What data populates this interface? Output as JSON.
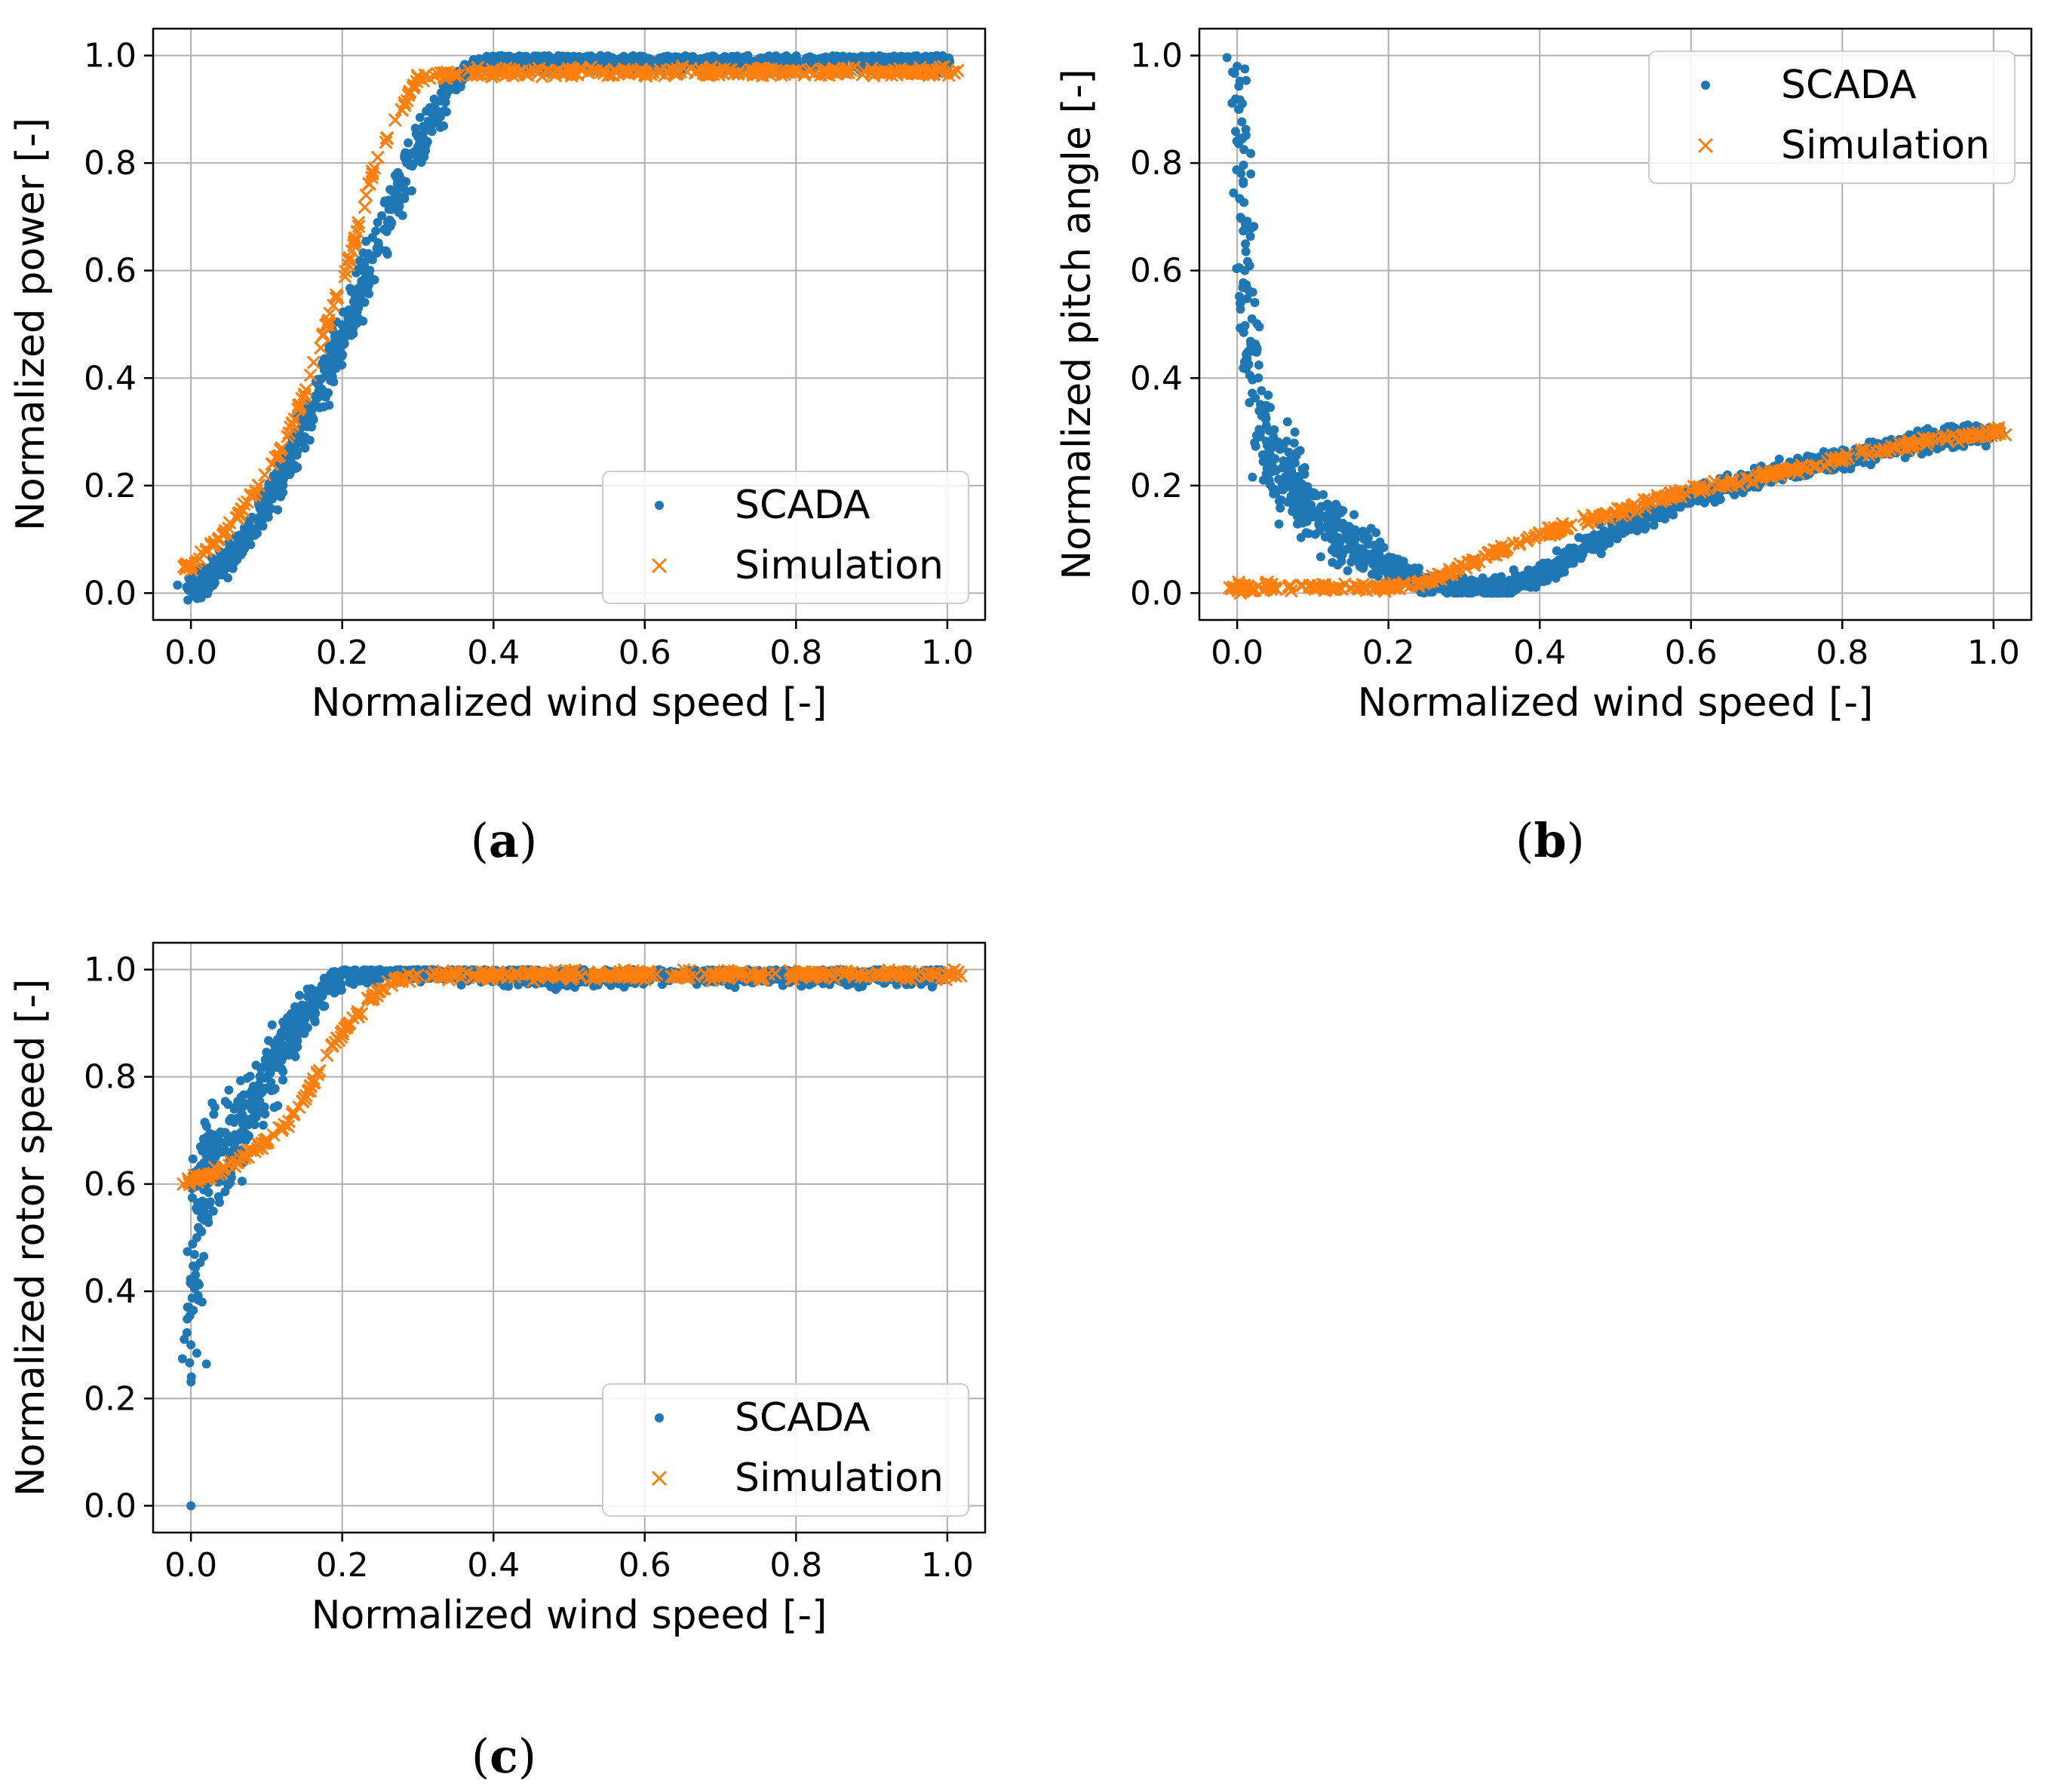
{
  "figure": {
    "panels": [
      {
        "id": "a",
        "caption_open": "(",
        "caption_letter": "a",
        "caption_close": ")"
      },
      {
        "id": "b",
        "caption_open": "(",
        "caption_letter": "b",
        "caption_close": ")"
      },
      {
        "id": "c",
        "caption_open": "(",
        "caption_letter": "c",
        "caption_close": ")"
      }
    ]
  },
  "colors": {
    "scada": "#1f77b4",
    "simulation": "#ff7f0e",
    "grid": "#b0b0b0",
    "axis": "#000000"
  },
  "chart_data": [
    {
      "id": "a",
      "type": "scatter",
      "title": "",
      "xlabel": "Normalized wind speed [-]",
      "ylabel": "Normalized power [-]",
      "xlim": [
        -0.05,
        1.05
      ],
      "ylim": [
        -0.05,
        1.05
      ],
      "xticks": [
        0.0,
        0.2,
        0.4,
        0.6,
        0.8,
        1.0
      ],
      "yticks": [
        0.0,
        0.2,
        0.4,
        0.6,
        0.8,
        1.0
      ],
      "xtick_labels": [
        "0.0",
        "0.2",
        "0.4",
        "0.6",
        "0.8",
        "1.0"
      ],
      "ytick_labels": [
        "0.0",
        "0.2",
        "0.4",
        "0.6",
        "0.8",
        "1.0"
      ],
      "grid": true,
      "legend": {
        "location": "lower-right",
        "entries": [
          "SCADA",
          "Simulation"
        ]
      },
      "series": [
        {
          "name": "SCADA",
          "marker": "dot",
          "x": [
            0.0,
            0.02,
            0.04,
            0.06,
            0.08,
            0.1,
            0.12,
            0.14,
            0.16,
            0.18,
            0.2,
            0.22,
            0.24,
            0.26,
            0.28,
            0.3,
            0.32,
            0.34,
            0.36,
            0.38,
            0.4,
            0.5,
            0.6,
            0.7,
            0.8,
            0.9,
            1.0
          ],
          "y": [
            0.01,
            0.03,
            0.05,
            0.08,
            0.12,
            0.17,
            0.22,
            0.28,
            0.34,
            0.41,
            0.48,
            0.55,
            0.62,
            0.69,
            0.76,
            0.83,
            0.89,
            0.94,
            0.97,
            0.98,
            0.99,
            0.99,
            0.99,
            0.99,
            0.99,
            0.99,
            0.99
          ]
        },
        {
          "name": "Simulation",
          "marker": "x",
          "x": [
            0.0,
            0.03,
            0.06,
            0.09,
            0.12,
            0.15,
            0.18,
            0.21,
            0.24,
            0.27,
            0.3,
            0.4,
            0.5,
            0.6,
            0.7,
            0.8,
            0.9,
            1.0
          ],
          "y": [
            0.05,
            0.09,
            0.14,
            0.2,
            0.27,
            0.37,
            0.5,
            0.62,
            0.78,
            0.88,
            0.96,
            0.97,
            0.97,
            0.97,
            0.97,
            0.97,
            0.97,
            0.97
          ]
        }
      ]
    },
    {
      "id": "b",
      "type": "scatter",
      "title": "",
      "xlabel": "Normalized wind speed [-]",
      "ylabel": "Normalized pitch angle [-]",
      "xlim": [
        -0.05,
        1.05
      ],
      "ylim": [
        -0.05,
        1.05
      ],
      "xticks": [
        0.0,
        0.2,
        0.4,
        0.6,
        0.8,
        1.0
      ],
      "yticks": [
        0.0,
        0.2,
        0.4,
        0.6,
        0.8,
        1.0
      ],
      "xtick_labels": [
        "0.0",
        "0.2",
        "0.4",
        "0.6",
        "0.8",
        "1.0"
      ],
      "ytick_labels": [
        "0.0",
        "0.2",
        "0.4",
        "0.6",
        "0.8",
        "1.0"
      ],
      "grid": true,
      "legend": {
        "location": "upper-right",
        "entries": [
          "SCADA",
          "Simulation"
        ]
      },
      "series": [
        {
          "name": "SCADA",
          "marker": "dot",
          "x": [
            0.0,
            0.01,
            0.02,
            0.03,
            0.05,
            0.08,
            0.1,
            0.12,
            0.15,
            0.18,
            0.2,
            0.25,
            0.3,
            0.35,
            0.4,
            0.5,
            0.6,
            0.7,
            0.8,
            0.9,
            1.0
          ],
          "y": [
            0.98,
            0.6,
            0.45,
            0.3,
            0.25,
            0.2,
            0.15,
            0.12,
            0.1,
            0.07,
            0.05,
            0.02,
            0.01,
            0.01,
            0.03,
            0.12,
            0.18,
            0.22,
            0.25,
            0.28,
            0.3
          ]
        },
        {
          "name": "Simulation",
          "marker": "x",
          "x": [
            -0.01,
            0.05,
            0.1,
            0.15,
            0.2,
            0.25,
            0.3,
            0.35,
            0.4,
            0.5,
            0.6,
            0.7,
            0.8,
            0.9,
            1.0
          ],
          "y": [
            0.01,
            0.01,
            0.01,
            0.01,
            0.01,
            0.02,
            0.05,
            0.08,
            0.11,
            0.15,
            0.19,
            0.22,
            0.25,
            0.28,
            0.3
          ]
        }
      ]
    },
    {
      "id": "c",
      "type": "scatter",
      "title": "",
      "xlabel": "Normalized wind speed [-]",
      "ylabel": "Normalized rotor speed [-]",
      "xlim": [
        -0.05,
        1.05
      ],
      "ylim": [
        -0.05,
        1.05
      ],
      "xticks": [
        0.0,
        0.2,
        0.4,
        0.6,
        0.8,
        1.0
      ],
      "yticks": [
        0.0,
        0.2,
        0.4,
        0.6,
        0.8,
        1.0
      ],
      "xtick_labels": [
        "0.0",
        "0.2",
        "0.4",
        "0.6",
        "0.8",
        "1.0"
      ],
      "ytick_labels": [
        "0.0",
        "0.2",
        "0.4",
        "0.6",
        "0.8",
        "1.0"
      ],
      "grid": true,
      "legend": {
        "location": "lower-right",
        "entries": [
          "SCADA",
          "Simulation"
        ]
      },
      "series": [
        {
          "name": "SCADA",
          "marker": "dot",
          "x": [
            0.0,
            0.0,
            0.01,
            0.02,
            0.03,
            0.05,
            0.08,
            0.1,
            0.12,
            0.15,
            0.18,
            0.2,
            0.25,
            0.3,
            0.4,
            0.5,
            0.6,
            0.7,
            0.8,
            0.9,
            1.0
          ],
          "y": [
            0.0,
            0.3,
            0.6,
            0.62,
            0.64,
            0.68,
            0.74,
            0.8,
            0.86,
            0.92,
            0.97,
            0.99,
            1.0,
            1.0,
            0.99,
            0.99,
            0.99,
            0.99,
            0.99,
            0.99,
            0.99
          ]
        },
        {
          "name": "Simulation",
          "marker": "x",
          "x": [
            -0.01,
            0.03,
            0.06,
            0.09,
            0.12,
            0.15,
            0.18,
            0.21,
            0.24,
            0.27,
            0.3,
            0.4,
            0.5,
            0.6,
            0.7,
            0.8,
            0.9,
            1.0
          ],
          "y": [
            0.6,
            0.62,
            0.64,
            0.67,
            0.7,
            0.76,
            0.84,
            0.9,
            0.95,
            0.98,
            0.99,
            0.99,
            0.99,
            0.99,
            0.99,
            0.99,
            0.99,
            0.99
          ]
        }
      ]
    }
  ]
}
